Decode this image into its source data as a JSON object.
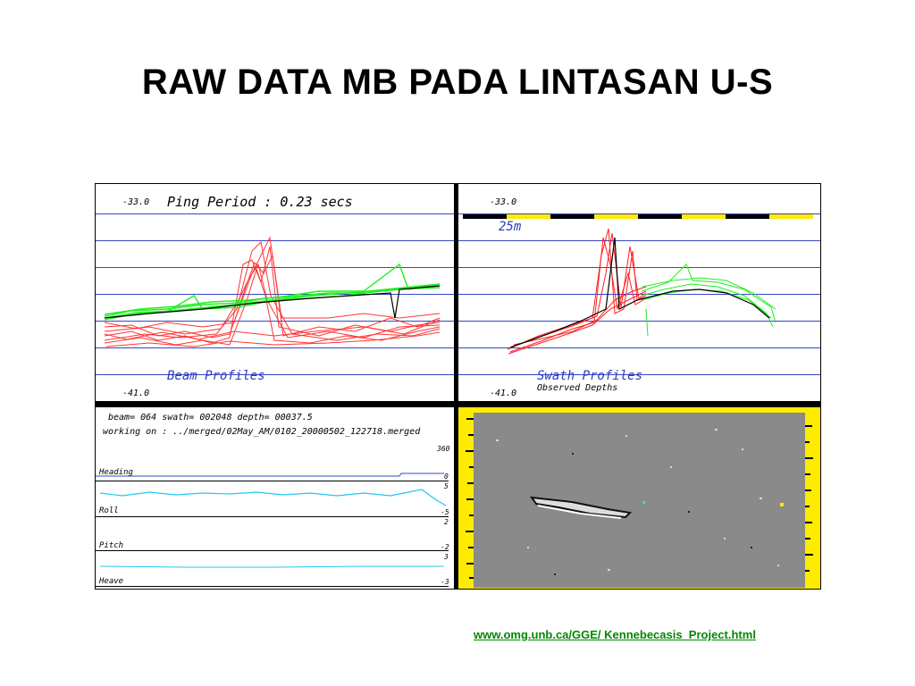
{
  "slide": {
    "title": "RAW DATA MB PADA LINTASAN U-S",
    "source_link": "www.omg.unb.ca/GGE/ Kennebecasis_Project.html"
  },
  "beam_panel": {
    "top_value": "-33.0",
    "ping_label": "Ping Period : 0.23 secs",
    "profile_label": "Beam Profiles",
    "bottom_value": "-41.0"
  },
  "swath_panel": {
    "top_value": "-33.0",
    "scale_label": "25m",
    "profile_label": "Swath Profiles",
    "sub_label": "Observed Depths",
    "bottom_value": "-41.0"
  },
  "motion_panel": {
    "status_line": "beam= 064 swath= 002048 depth= 00037.5",
    "working_line": "working on : ../merged/02May_AM/0102_20000502_122718.merged",
    "heading_label": "Heading",
    "heading_max": "360",
    "heading_min": "0",
    "roll_label": "Roll",
    "roll_max": "5",
    "roll_min": "-5",
    "pitch_label": "Pitch",
    "pitch_max": "2",
    "pitch_min": "-2",
    "heave_label": "Heave",
    "heave_max": "3",
    "heave_min": "-3"
  },
  "colors": {
    "grid_line": "#3446c8",
    "ping_red": "#ff2020",
    "ping_green": "#22ee22",
    "scale_yellow": "#ffeb00",
    "link_green": "#008800",
    "motion_cyan": "#22c8f0"
  }
}
